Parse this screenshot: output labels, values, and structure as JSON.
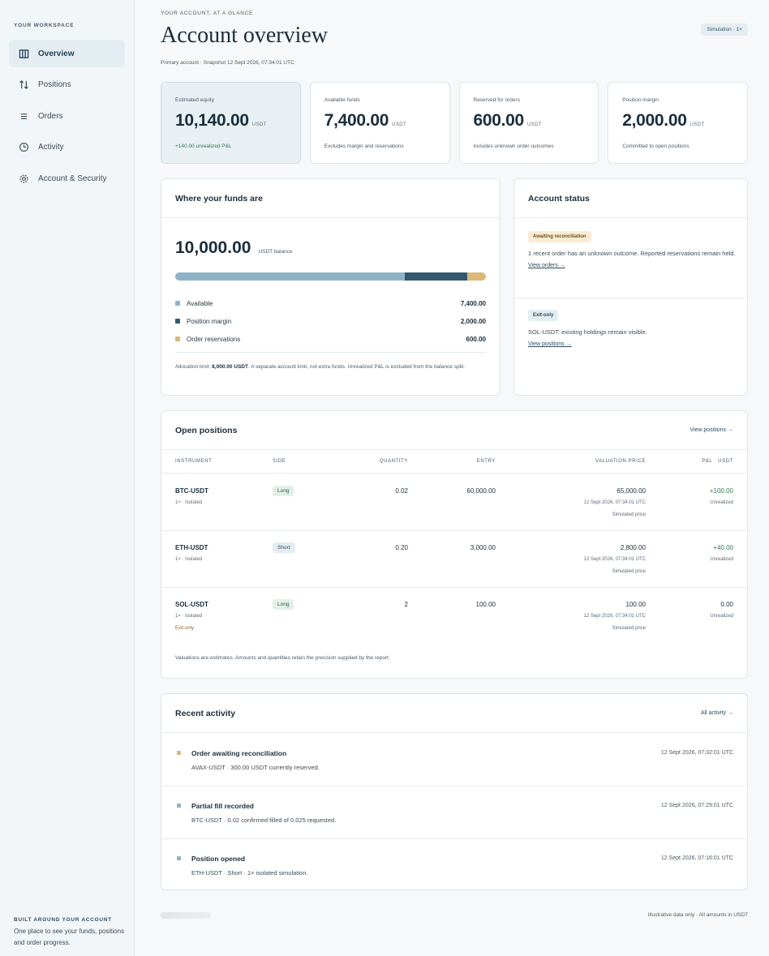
{
  "sidebar": {
    "workspace_label": "YOUR WORKSPACE",
    "items": [
      {
        "label": "Overview",
        "icon": "columns-icon"
      },
      {
        "label": "Positions",
        "icon": "up-down-arrows-icon"
      },
      {
        "label": "Orders",
        "icon": "list-icon"
      },
      {
        "label": "Activity",
        "icon": "clock-icon"
      },
      {
        "label": "Account & Security",
        "icon": "gear-icon"
      }
    ],
    "footer_title": "BUILT AROUND YOUR ACCOUNT",
    "footer_text": "One place to see your funds, positions and order progress."
  },
  "header": {
    "eyebrow": "YOUR ACCOUNT, AT A GLANCE",
    "title": "Account overview",
    "badge": "Simulation · 1×",
    "subline": "Primary account · Snapshot 12 Sept 2026, 07:34:01 UTC"
  },
  "cards": [
    {
      "label": "Estimated equity",
      "value": "10,140.00",
      "unit": "USDT",
      "note": "+140.00 unrealized P&L"
    },
    {
      "label": "Available funds",
      "value": "7,400.00",
      "unit": "USDT",
      "note": "Excludes margin and reservations"
    },
    {
      "label": "Reserved for orders",
      "value": "600.00",
      "unit": "USDT",
      "note": "Includes unknown order outcomes"
    },
    {
      "label": "Position margin",
      "value": "2,000.00",
      "unit": "USDT",
      "note": "Committed to open positions"
    }
  ],
  "funds": {
    "title": "Where your funds are",
    "balance": "10,000.00",
    "balance_unit": "USDT balance",
    "segments": [
      {
        "name": "Available",
        "value": "7,400.00",
        "amount": 7400,
        "color": "#8fb3c6"
      },
      {
        "name": "Position margin",
        "value": "2,000.00",
        "amount": 2000,
        "color": "#35586f"
      },
      {
        "name": "Order reservations",
        "value": "600.00",
        "amount": 600,
        "color": "#d9b878"
      }
    ],
    "alloc_prefix": "Allocation limit: ",
    "alloc_value": "8,000.00 USDT",
    "alloc_suffix": ". A separate account limit, not extra funds. Unrealized P&L is excluded from the balance split."
  },
  "status": {
    "title": "Account status",
    "blocks": [
      {
        "tag": "Awaiting reconciliation",
        "text": "1 recent order has an unknown outcome. Reported reservations remain held.",
        "link": "View orders →"
      },
      {
        "tag": "Exit-only",
        "text": "SOL-USDT: existing holdings remain visible.",
        "link": "View positions →"
      }
    ]
  },
  "positions": {
    "title": "Open positions",
    "link": "View positions →",
    "columns": [
      "INSTRUMENT",
      "SIDE",
      "QUANTITY",
      "ENTRY",
      "VALUATION PRICE",
      "P&L · USDT"
    ],
    "rows": [
      {
        "instrument": "BTC-USDT",
        "meta": "1× · Isolated",
        "flag": "",
        "side": "Long",
        "quantity": "0.02",
        "entry": "60,000.00",
        "valuation": "65,000.00",
        "val_time": "12 Sept 2026, 07:34:01 UTC",
        "val_note": "Simulated price",
        "pnl": "+100.00",
        "pnl_note": "Unrealized"
      },
      {
        "instrument": "ETH-USDT",
        "meta": "1× · Isolated",
        "flag": "",
        "side": "Short",
        "quantity": "0.20",
        "entry": "3,000.00",
        "valuation": "2,800.00",
        "val_time": "12 Sept 2026, 07:34:01 UTC",
        "val_note": "Simulated price",
        "pnl": "+40.00",
        "pnl_note": "Unrealized"
      },
      {
        "instrument": "SOL-USDT",
        "meta": "1× · Isolated",
        "flag": "Exit-only",
        "side": "Long",
        "quantity": "2",
        "entry": "100.00",
        "valuation": "100.00",
        "val_time": "12 Sept 2026, 07:34:01 UTC",
        "val_note": "Simulated price",
        "pnl": "0.00",
        "pnl_note": "Unrealized"
      }
    ],
    "note": "Valuations are estimates. Amounts and quantities retain the precision supplied by the report."
  },
  "activity": {
    "title": "Recent activity",
    "link": "All activity →",
    "items": [
      {
        "title": "Order awaiting reconciliation",
        "desc": "AVAX-USDT · 300.00 USDT currently reserved.",
        "time": "12 Sept 2026, 07:32:01 UTC",
        "color": "#d9b878"
      },
      {
        "title": "Partial fill recorded",
        "desc": "BTC-USDT · 0.02 confirmed filled of 0.025 requested.",
        "time": "12 Sept 2026, 07:29:01 UTC",
        "color": "#8fb3c6"
      },
      {
        "title": "Position opened",
        "desc": "ETH-USDT · Short · 1× isolated simulation.",
        "time": "12 Sept 2026, 07:16:01 UTC",
        "color": "#8fb3c6"
      }
    ]
  },
  "footer": {
    "note": "Illustrative data only · All amounts in USDT"
  }
}
